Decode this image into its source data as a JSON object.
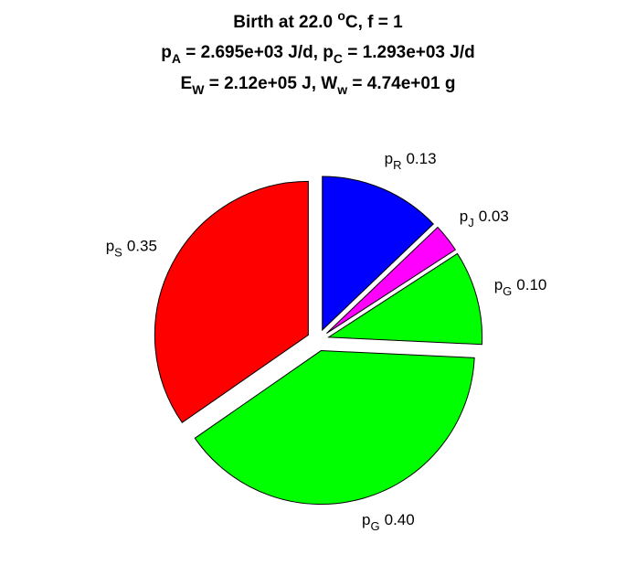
{
  "chart_data": {
    "type": "pie",
    "title": [
      [
        {
          "text": "Birth at 22.0 "
        },
        {
          "sup": "o"
        },
        {
          "text": "C, f = 1"
        }
      ],
      [
        {
          "text": "p"
        },
        {
          "sub": "A"
        },
        {
          "text": " = 2.695e+03 J/d, p"
        },
        {
          "sub": "C"
        },
        {
          "text": " = 1.293e+03 J/d"
        }
      ],
      [
        {
          "text": "E"
        },
        {
          "sub": "W"
        },
        {
          "text": " = 2.12e+05 J, W"
        },
        {
          "sub": "w"
        },
        {
          "text": " = 4.74e+01 g"
        }
      ]
    ],
    "categories": [
      "p",
      "p",
      "p",
      "p",
      "p"
    ],
    "subscripts": [
      "R",
      "J",
      "G",
      "G",
      "S"
    ],
    "values": [
      0.13,
      0.03,
      0.1,
      0.4,
      0.35
    ],
    "value_labels": [
      "0.13",
      "0.03",
      "0.10",
      "0.40",
      "0.35"
    ],
    "colors": [
      "#0000ff",
      "#ff00ff",
      "#00ff00",
      "#00ff00",
      "#ff0000"
    ],
    "exploded": true
  }
}
